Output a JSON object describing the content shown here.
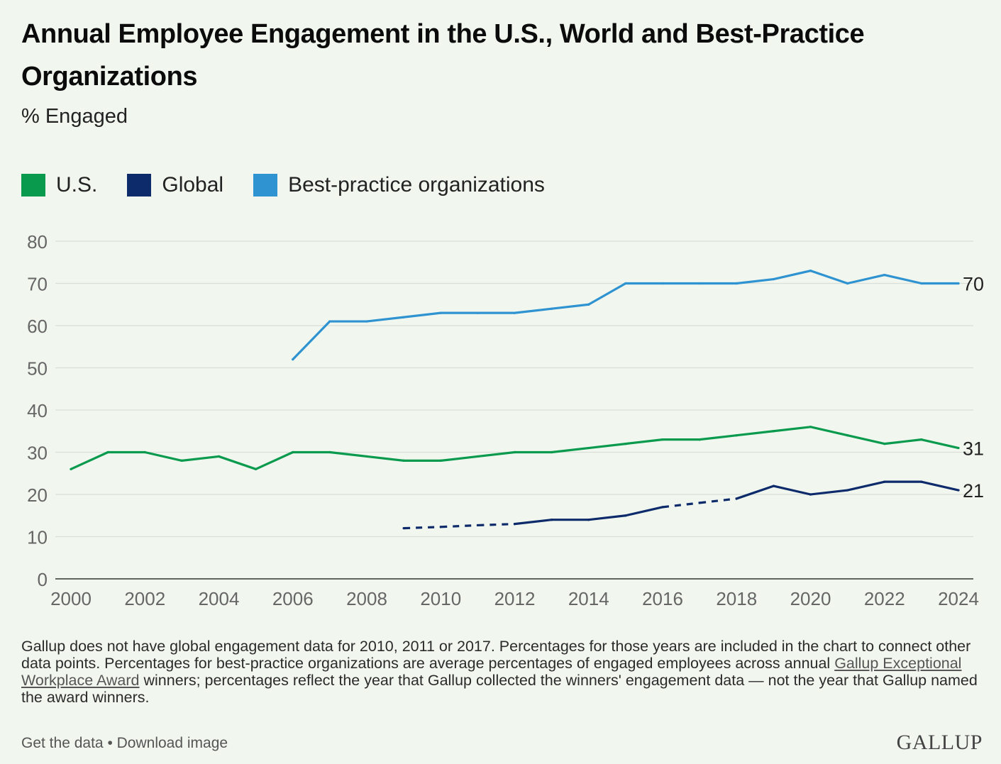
{
  "title": "Annual Employee Engagement in the U.S., World and Best-Practice Organizations",
  "subtitle": "% Engaged",
  "legend": [
    {
      "label": "U.S.",
      "color": "#0a9a4e"
    },
    {
      "label": "Global",
      "color": "#0d2a6b"
    },
    {
      "label": "Best-practice organizations",
      "color": "#2e93d0"
    }
  ],
  "note": {
    "before_link": "Gallup does not have global engagement data for 2010, 2011 or 2017. Percentages for those years are included in the chart to connect other data points. Percentages for best-practice organizations are average percentages of engaged employees across annual ",
    "link": "Gallup Exceptional Workplace Award",
    "after_link": " winners; percentages reflect the year that Gallup collected the winners' engagement data — not the year that Gallup named the award winners."
  },
  "footer": {
    "get_data": "Get the data",
    "separator": "•",
    "download": "Download image",
    "logo": "GALLUP"
  },
  "chart_data": {
    "type": "line",
    "title": "Annual Employee Engagement in the U.S., World and Best-Practice Organizations",
    "ylabel": "% Engaged",
    "xlim": [
      2000,
      2024
    ],
    "ylim": [
      0,
      80
    ],
    "x_ticks": [
      "2000",
      "2002",
      "2004",
      "2006",
      "2008",
      "2010",
      "2012",
      "2014",
      "2016",
      "2018",
      "2020",
      "2022",
      "2024"
    ],
    "y_ticks": [
      "0",
      "10",
      "20",
      "30",
      "40",
      "50",
      "60",
      "70",
      "80"
    ],
    "grid": true,
    "legend_position": "top-left",
    "series": [
      {
        "name": "U.S.",
        "color": "#0a9a4e",
        "end_label": "31",
        "x": [
          2000,
          2001,
          2002,
          2003,
          2004,
          2005,
          2006,
          2007,
          2008,
          2009,
          2010,
          2011,
          2012,
          2013,
          2014,
          2015,
          2016,
          2017,
          2018,
          2019,
          2020,
          2021,
          2022,
          2023,
          2024
        ],
        "y": [
          26,
          30,
          30,
          28,
          29,
          26,
          30,
          30,
          29,
          28,
          28,
          29,
          30,
          30,
          31,
          32,
          33,
          33,
          34,
          35,
          36,
          34,
          32,
          33,
          31
        ]
      },
      {
        "name": "Global",
        "color": "#0d2a6b",
        "end_label": "21",
        "x": [
          2009,
          2010,
          2011,
          2012,
          2013,
          2014,
          2015,
          2016,
          2017,
          2018,
          2019,
          2020,
          2021,
          2022,
          2023,
          2024
        ],
        "y": [
          12,
          12.3,
          12.7,
          13,
          14,
          14,
          15,
          17,
          18,
          19,
          22,
          20,
          21,
          23,
          23,
          21
        ],
        "dashed_segments": [
          [
            2009,
            2012
          ],
          [
            2016,
            2018
          ]
        ]
      },
      {
        "name": "Best-practice organizations",
        "color": "#2e93d0",
        "end_label": "70",
        "x": [
          2006,
          2007,
          2008,
          2009,
          2010,
          2011,
          2012,
          2013,
          2014,
          2015,
          2016,
          2017,
          2018,
          2019,
          2020,
          2021,
          2022,
          2023,
          2024
        ],
        "y": [
          52,
          61,
          61,
          62,
          63,
          63,
          63,
          64,
          65,
          70,
          70,
          70,
          70,
          71,
          73,
          70,
          72,
          70,
          70
        ]
      }
    ]
  }
}
